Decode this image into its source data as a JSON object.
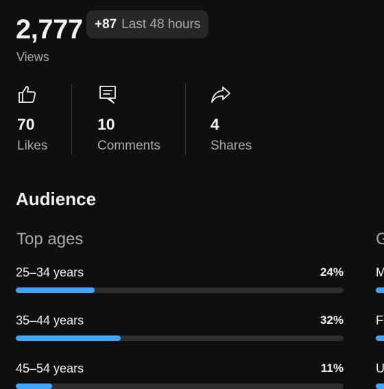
{
  "overview": {
    "views_count": "2,777",
    "views_label": "Views",
    "delta": "+87",
    "delta_period": "Last 48 hours"
  },
  "engagement": [
    {
      "icon": "thumbs-up-icon",
      "value": "70",
      "label": "Likes"
    },
    {
      "icon": "comment-icon",
      "value": "10",
      "label": "Comments"
    },
    {
      "icon": "share-icon",
      "value": "4",
      "label": "Shares"
    }
  ],
  "audience": {
    "title": "Audience",
    "top_ages_title": "Top ages",
    "second_panel_title": "G",
    "ages": [
      {
        "label": "25–34 years",
        "percent_text": "24%",
        "percent": 24
      },
      {
        "label": "35–44 years",
        "percent_text": "32%",
        "percent": 32
      },
      {
        "label": "45–54 years",
        "percent_text": "11%",
        "percent": 11
      }
    ],
    "second_panel_rows": [
      "M",
      "Fe",
      "U"
    ]
  },
  "colors": {
    "background": "#0f0f0f",
    "accent": "#3ea6ff",
    "muted_text": "#aaaaaa",
    "chip": "#272727"
  }
}
